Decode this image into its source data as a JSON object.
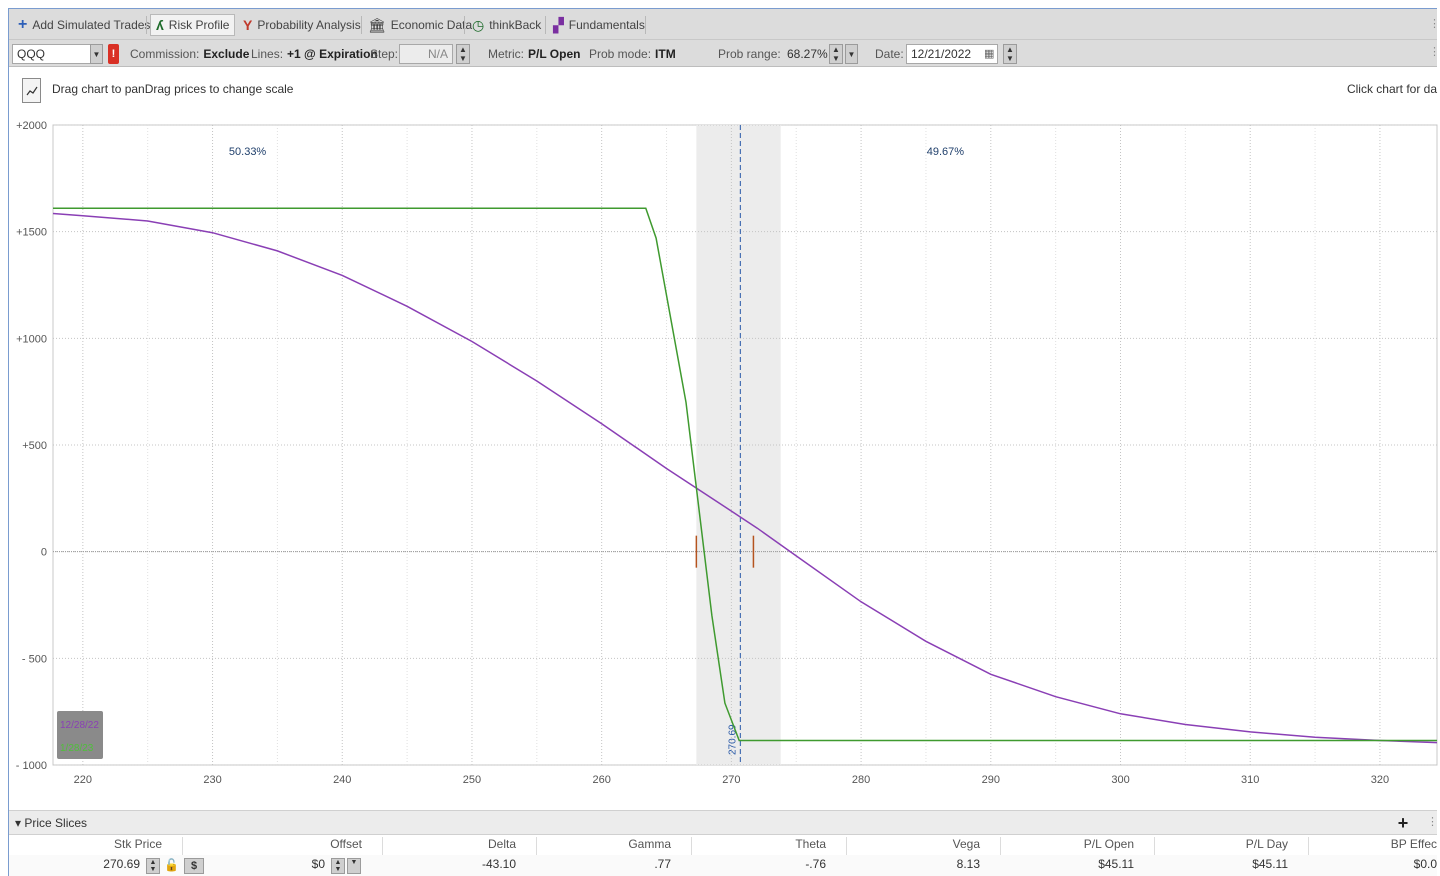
{
  "toolbar": {
    "items": [
      {
        "label": "Add Simulated Trades",
        "icon": "plus-icon"
      },
      {
        "label": "Risk Profile",
        "icon": "risk-profile-icon"
      },
      {
        "label": "Probability Analysis",
        "icon": "probability-icon"
      },
      {
        "label": "Economic Data",
        "icon": "bank-icon"
      },
      {
        "label": "thinkBack",
        "icon": "clock-icon"
      },
      {
        "label": "Fundamentals",
        "icon": "fundamentals-icon"
      }
    ]
  },
  "controls": {
    "symbol": "QQQ",
    "alert_badge": "!",
    "commission_label": "Commission:",
    "commission_value": "Exclude",
    "lines_label": "Lines:",
    "lines_value": "+1 @ Expiration",
    "step_label": "Step:",
    "step_value": "N/A",
    "metric_label": "Metric:",
    "metric_value": "P/L Open",
    "prob_mode_label": "Prob mode:",
    "prob_mode_value": "ITM",
    "prob_range_label": "Prob range:",
    "prob_range_value": "68.27%",
    "date_label": "Date:",
    "date_value": "12/21/2022"
  },
  "hint": {
    "left": "Drag chart to panDrag prices to change scale",
    "right": "Click chart for da"
  },
  "chart_data": {
    "type": "line",
    "x_ticks": [
      220,
      230,
      240,
      250,
      260,
      270,
      280,
      290,
      300,
      310,
      320
    ],
    "y_ticks": [
      2000,
      1500,
      1000,
      500,
      0,
      -500,
      -1000
    ],
    "y_tick_labels": [
      "+2000",
      "+1500",
      "+1000",
      "+500",
      "0",
      "- 500",
      "- 1000"
    ],
    "xlim": [
      217.7,
      324.4
    ],
    "ylim": [
      -1000,
      2000
    ],
    "current_price": 270.69,
    "current_price_label": "270.69",
    "prob_band": [
      267.3,
      273.8
    ],
    "prob_left_label": "50.33%",
    "prob_right_label": "49.67%",
    "legend": [
      "12/28/22",
      "1/28/23"
    ],
    "series": [
      {
        "name": "12/28/22",
        "color": "#8a3fb5",
        "points": [
          [
            217.7,
            1585
          ],
          [
            220,
            1575
          ],
          [
            225,
            1550
          ],
          [
            230,
            1495
          ],
          [
            235,
            1410
          ],
          [
            240,
            1295
          ],
          [
            245,
            1150
          ],
          [
            250,
            985
          ],
          [
            255,
            800
          ],
          [
            260,
            600
          ],
          [
            265,
            390
          ],
          [
            270,
            190
          ],
          [
            272,
            110
          ],
          [
            275,
            -20
          ],
          [
            280,
            -235
          ],
          [
            285,
            -420
          ],
          [
            290,
            -575
          ],
          [
            295,
            -680
          ],
          [
            300,
            -760
          ],
          [
            305,
            -810
          ],
          [
            310,
            -845
          ],
          [
            315,
            -870
          ],
          [
            320,
            -885
          ],
          [
            324.4,
            -895
          ]
        ]
      },
      {
        "name": "1/28/23",
        "color": "#3f9a2f",
        "points": [
          [
            217.7,
            1610
          ],
          [
            263.4,
            1610
          ],
          [
            264.2,
            1470
          ],
          [
            266.5,
            700
          ],
          [
            268.5,
            -300
          ],
          [
            269.5,
            -710
          ],
          [
            270.6,
            -885
          ],
          [
            324.4,
            -885
          ]
        ]
      }
    ],
    "markers": [
      [
        267.3,
        0
      ],
      [
        271.7,
        0
      ]
    ]
  },
  "price_slices": {
    "title": "Price Slices",
    "columns": [
      "Stk Price",
      "Offset",
      "Delta",
      "Gamma",
      "Theta",
      "Vega",
      "P/L Open",
      "P/L Day",
      "BP Effec"
    ],
    "row": {
      "stk_price": "270.69",
      "offset": "$0",
      "delta": "-43.10",
      "gamma": ".77",
      "theta": "-.76",
      "vega": "8.13",
      "pl_open": "$45.11",
      "pl_day": "$45.11",
      "bp_effect": "$0.0"
    },
    "currency_symbol": "$"
  }
}
